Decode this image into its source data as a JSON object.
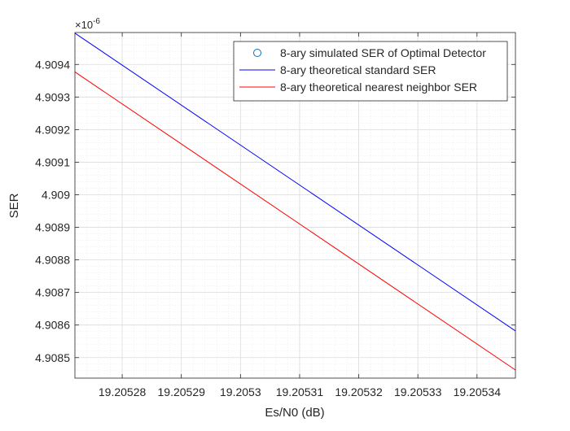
{
  "chart_data": {
    "type": "line",
    "title": "",
    "xlabel": "Es/N0 (dB)",
    "ylabel": "SER",
    "y_exponent_label": "×10",
    "y_exponent_power": "-6",
    "xlim": [
      19.205272,
      19.2053465
    ],
    "ylim": [
      4.908437,
      4.909498
    ],
    "x_ticks": [
      19.20528,
      19.20529,
      19.2053,
      19.20531,
      19.20532,
      19.20533,
      19.20534
    ],
    "x_tick_labels": [
      "19.20528",
      "19.20529",
      "19.2053",
      "19.20531",
      "19.20532",
      "19.20533",
      "19.20534"
    ],
    "y_ticks": [
      4.9085,
      4.9086,
      4.9087,
      4.9088,
      4.9089,
      4.909,
      4.9091,
      4.9092,
      4.9093,
      4.9094
    ],
    "y_tick_labels": [
      "4.9085",
      "4.9086",
      "4.9087",
      "4.9088",
      "4.9089",
      "4.909",
      "4.9091",
      "4.9092",
      "4.9093",
      "4.9094"
    ],
    "grid": true,
    "minor_grid": true,
    "legend_position": "top-right",
    "series": [
      {
        "name": "8-ary simulated SER of Optimal Detector",
        "style": "marker-circle",
        "color": "#0072bd",
        "x": [],
        "y": []
      },
      {
        "name": "8-ary theoretical standard SER",
        "style": "line",
        "color": "#0000ff",
        "x": [
          19.205272,
          19.2053465
        ],
        "y": [
          4.909496,
          4.908582
        ]
      },
      {
        "name": "8-ary theoretical nearest neighbor SER",
        "style": "line",
        "color": "#ff0000",
        "x": [
          19.205272,
          19.2053465
        ],
        "y": [
          4.909377,
          4.908462
        ]
      }
    ]
  }
}
